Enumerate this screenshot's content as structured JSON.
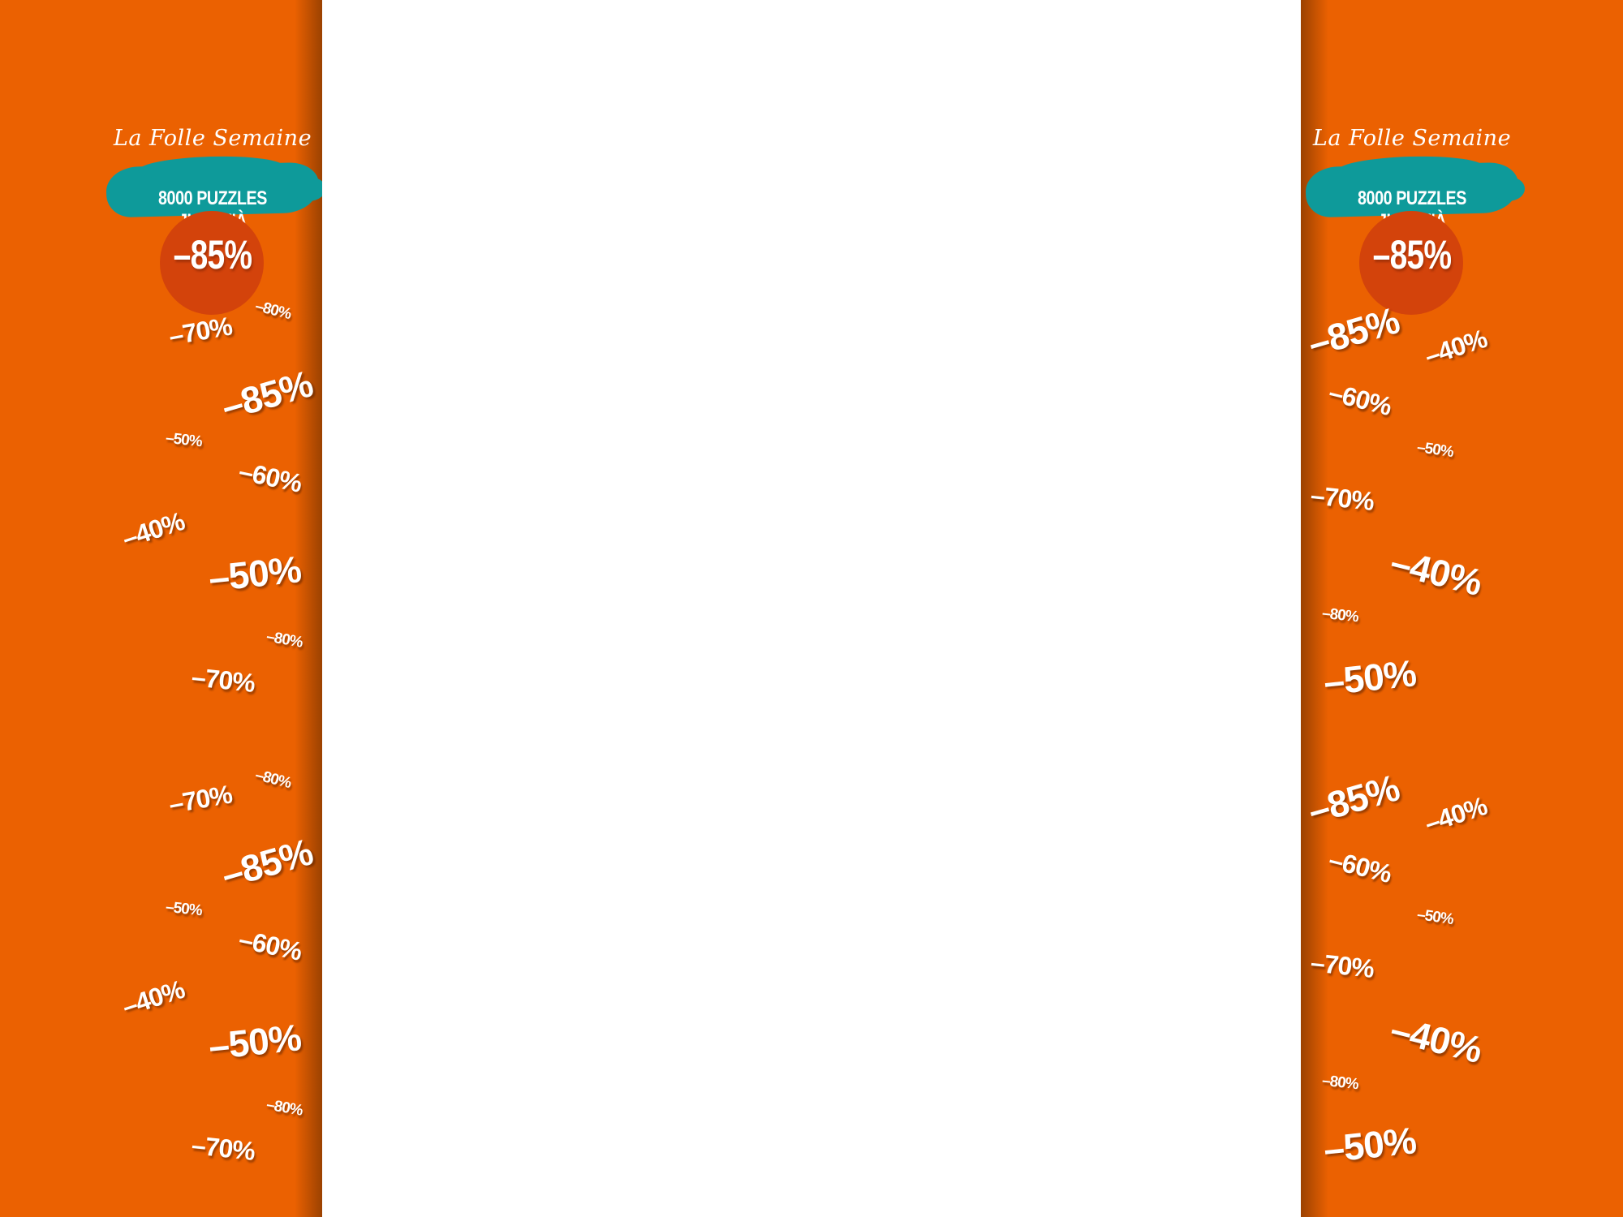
{
  "banner": {
    "brand": "La Folle Semaine",
    "tagline": "8000 PUZZLES JUSQU'À",
    "headline_discount": "–85%"
  },
  "left_badges": [
    "–80%",
    "–70%",
    "–85%",
    "–50%",
    "–60%",
    "–40%",
    "–50%",
    "–80%",
    "–70%",
    "–80%",
    "–70%",
    "–85%",
    "–50%",
    "–60%",
    "–40%",
    "–50%",
    "–80%",
    "–70%"
  ],
  "right_badges": [
    "–85%",
    "–40%",
    "–60%",
    "–50%",
    "–70%",
    "–40%",
    "–80%",
    "–50%",
    "–85%",
    "–40%",
    "–60%",
    "–50%",
    "–70%",
    "–40%",
    "–80%",
    "–50%"
  ],
  "colors": {
    "background_orange": "#eb6101",
    "teal_blob": "#0e9a9a",
    "circle_red": "#d3430b",
    "text": "#ffffff",
    "center": "#ffffff"
  }
}
